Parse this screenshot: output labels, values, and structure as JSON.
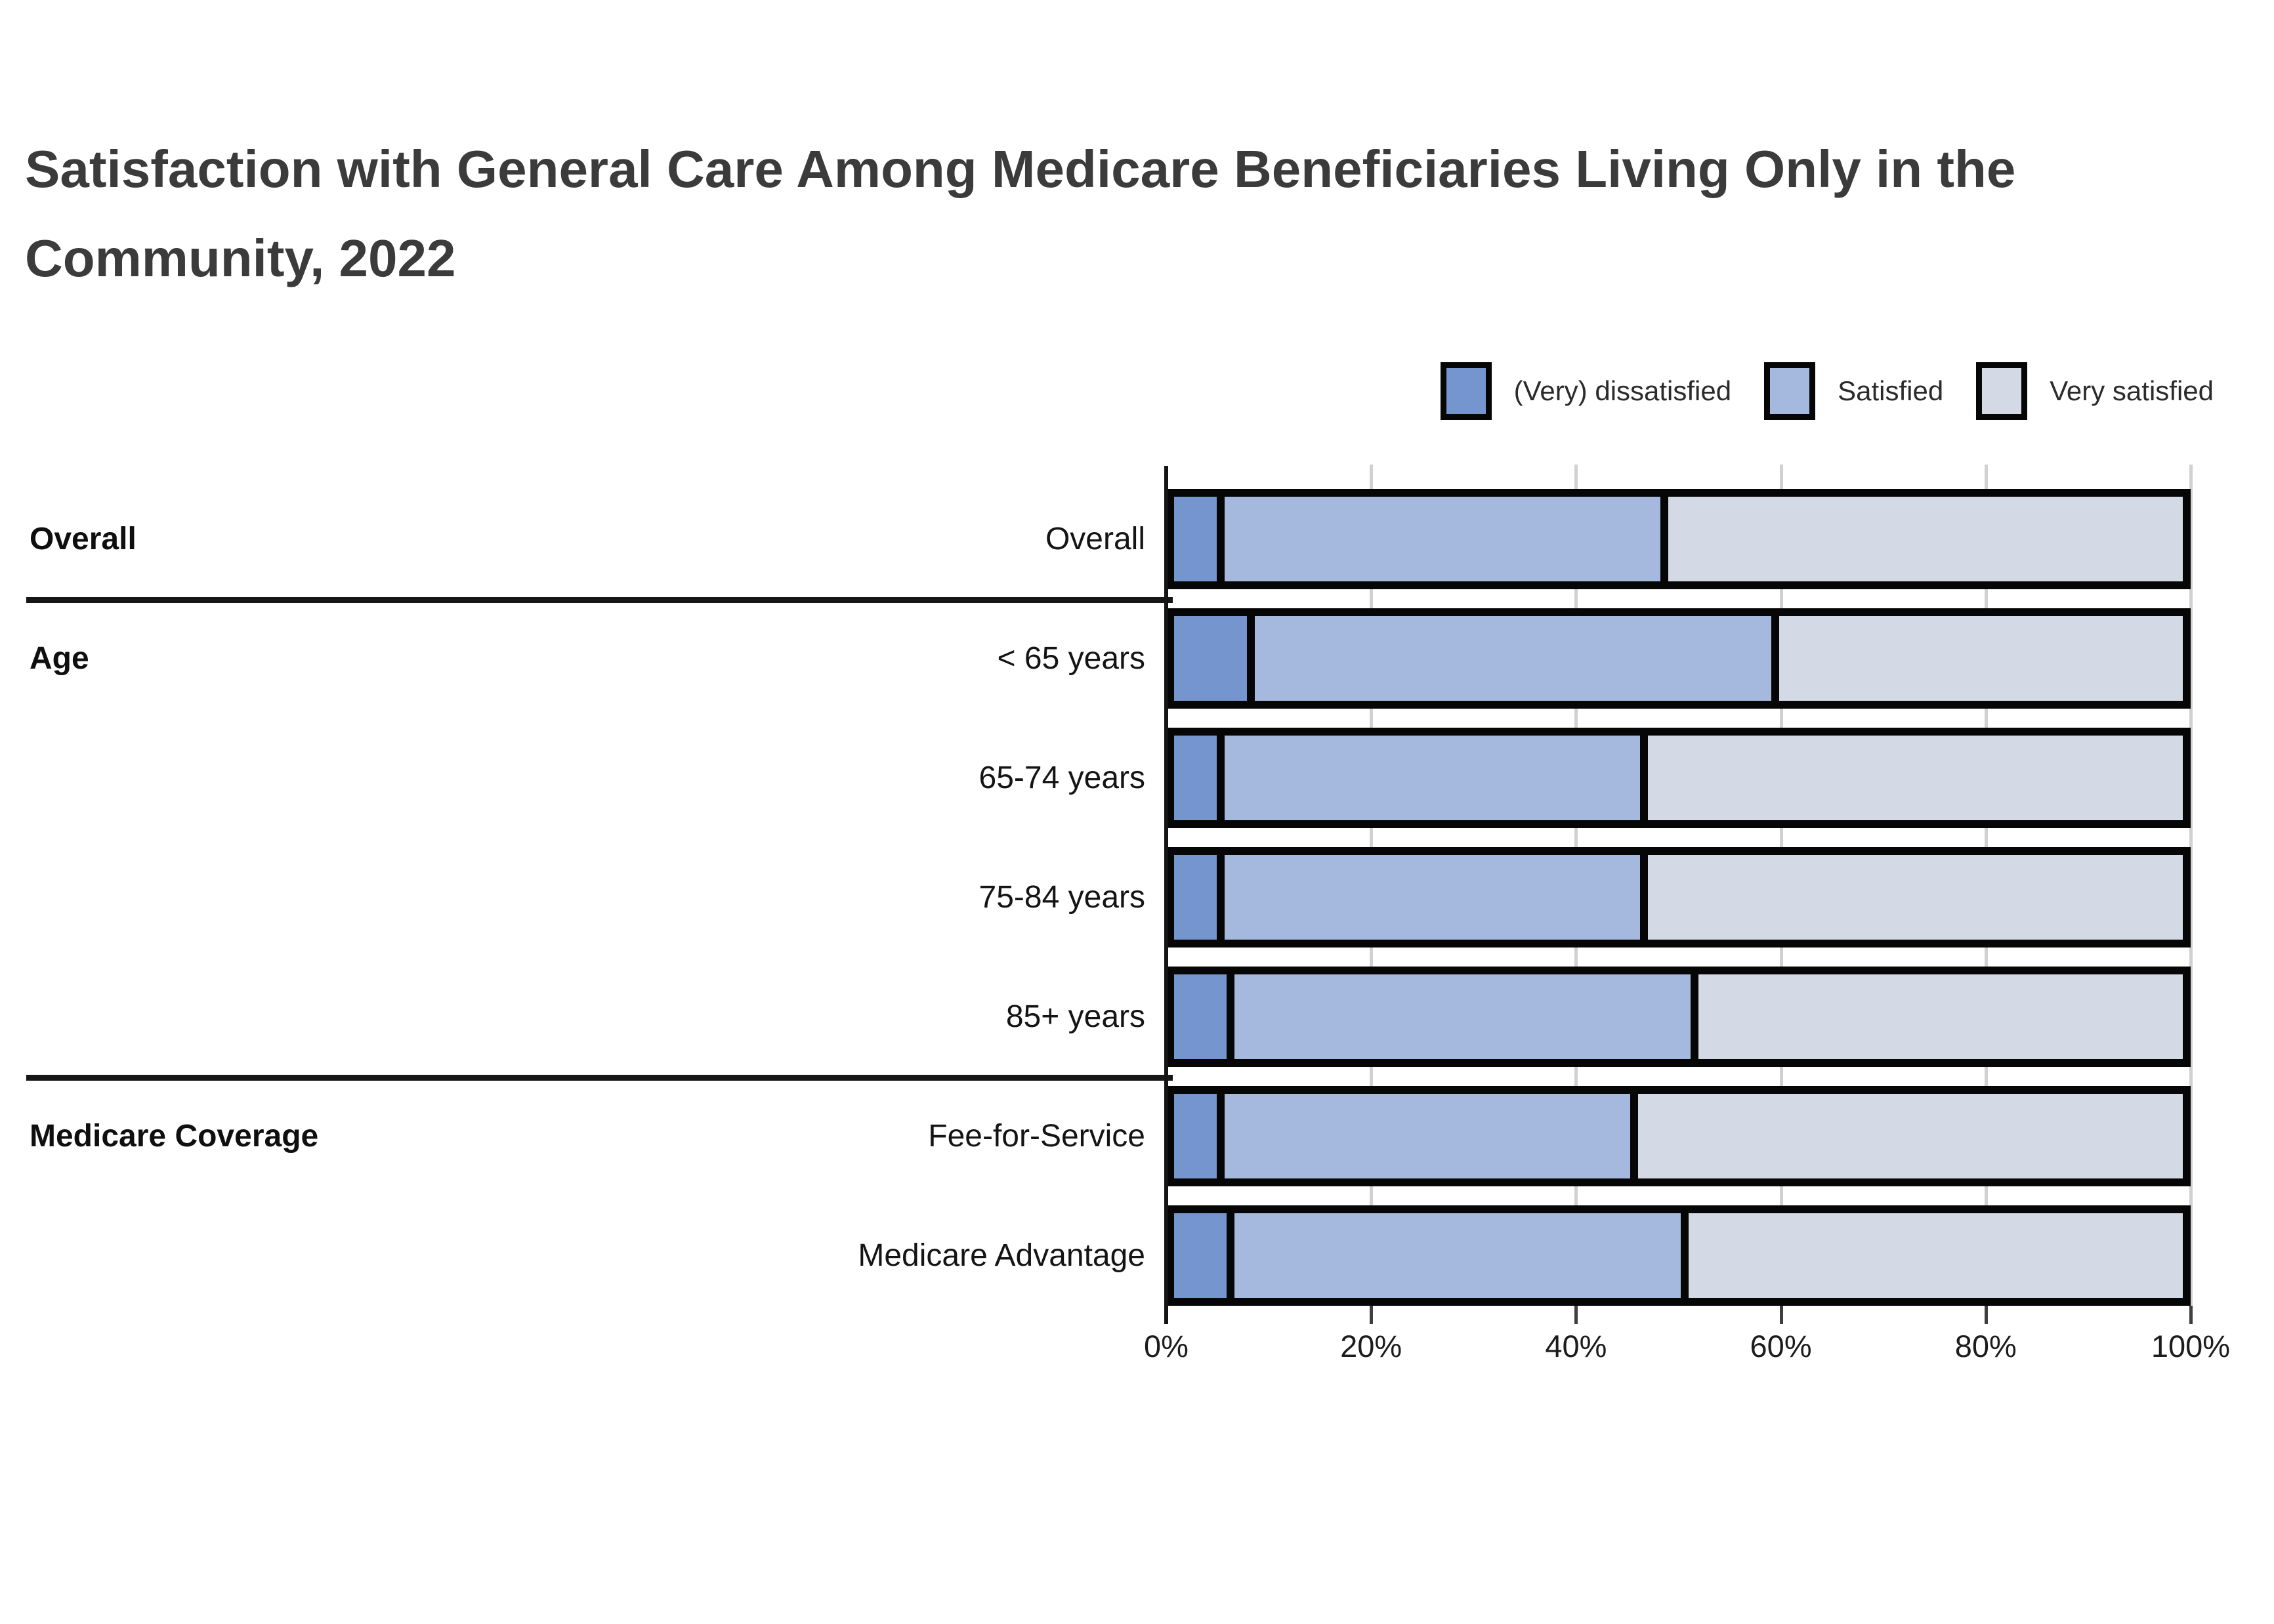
{
  "title": {
    "line1": "Satisfaction with General Care Among Medicare Beneficiaries Living Only in the",
    "line2": "Community, 2022"
  },
  "legend": [
    {
      "label": "(Very) dissatisfied",
      "color": "#7495CE"
    },
    {
      "label": "Satisfied",
      "color": "#A4B9DD"
    },
    {
      "label": "Very satisfied",
      "color": "#D3DAE5"
    }
  ],
  "sections": [
    {
      "header": "Overall",
      "row_labels": [
        "Overall"
      ]
    },
    {
      "header": "Age",
      "row_labels": [
        "< 65 years",
        "65-74 years",
        "75-84 years",
        "85+ years"
      ]
    },
    {
      "header": "Medicare Coverage",
      "row_labels": [
        "Fee-for-Service",
        "Medicare Advantage"
      ]
    }
  ],
  "x_axis": {
    "tick_labels": [
      "0%",
      "20%",
      "40%",
      "60%",
      "80%",
      "100%"
    ]
  },
  "colors": {
    "bar_border": "#060606",
    "gridline": "#d1d1d1",
    "axis": "#141414",
    "title_text": "#3b3b3b",
    "label_text": "#141414"
  },
  "chart_data": {
    "type": "bar",
    "orientation": "horizontal",
    "stacked": true,
    "title": "Satisfaction with General Care Among Medicare Beneficiaries Living Only in the Community, 2022",
    "categories": [
      "Overall",
      "< 65 years",
      "65-74 years",
      "75-84 years",
      "85+ years",
      "Fee-for-Service",
      "Medicare Advantage"
    ],
    "groups": [
      {
        "label": "Overall",
        "count": 1
      },
      {
        "label": "Age",
        "count": 4
      },
      {
        "label": "Medicare Coverage",
        "count": 2
      }
    ],
    "series": [
      {
        "name": "(Very) dissatisfied",
        "color": "#7495CE",
        "values": [
          5,
          8,
          5,
          5,
          6,
          5,
          6
        ]
      },
      {
        "name": "Satisfied",
        "color": "#A4B9DD",
        "values": [
          44,
          52,
          42,
          42,
          46,
          41,
          45
        ]
      },
      {
        "name": "Very satisfied",
        "color": "#D3DAE5",
        "values": [
          51,
          40,
          53,
          53,
          48,
          54,
          49
        ]
      }
    ],
    "xlim": [
      0,
      100
    ],
    "x_tick_labels": [
      "0%",
      "20%",
      "40%",
      "60%",
      "80%",
      "100%"
    ],
    "grid": true,
    "legend_position": "top-right",
    "units": "percent"
  }
}
